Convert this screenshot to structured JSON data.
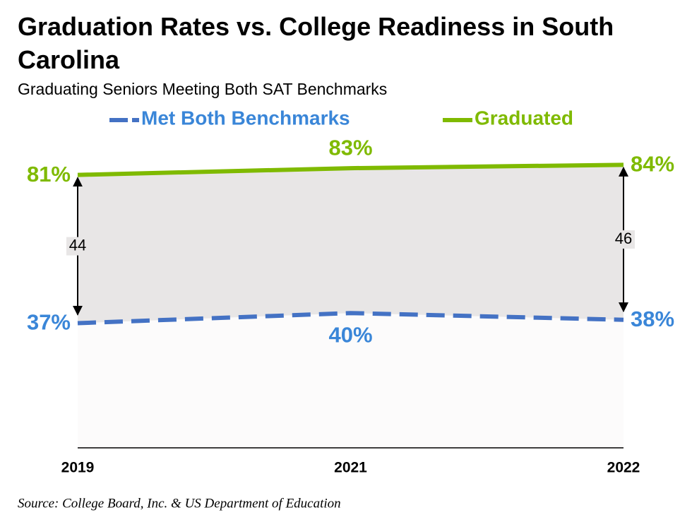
{
  "chart_data": {
    "type": "line",
    "title": "Graduation Rates vs. College Readiness in South Carolina",
    "subtitle": "Graduating Seniors Meeting Both SAT Benchmarks",
    "categories": [
      "2019",
      "2021",
      "2022"
    ],
    "series": [
      {
        "name": "Met Both Benchmarks",
        "color": "#4472c4",
        "label_color": "#3a86d8",
        "dashed": true,
        "values": [
          37,
          40,
          38
        ],
        "value_labels": [
          "37%",
          "40%",
          "38%"
        ]
      },
      {
        "name": "Graduated",
        "color": "#7fba00",
        "label_color": "#7fba00",
        "dashed": false,
        "values": [
          81,
          83,
          84
        ],
        "value_labels": [
          "81%",
          "83%",
          "84%"
        ]
      }
    ],
    "gaps": [
      44,
      46
    ],
    "ylim": [
      0,
      100
    ],
    "source": "Source: College Board, Inc. & US Department of Education"
  }
}
